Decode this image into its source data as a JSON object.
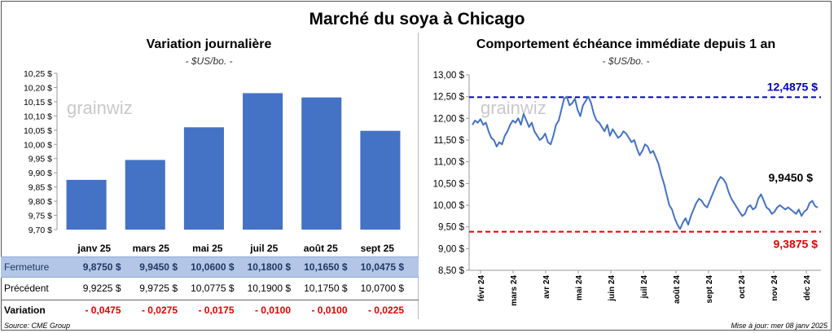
{
  "title": "Marché du soya à Chicago",
  "left": {
    "title": "Variation journalière",
    "unit": "- $US/bo. -"
  },
  "right": {
    "title": "Comportement échéance immédiate depuis 1 an",
    "unit": "- $US/bo. -",
    "label_high": "12,4875 $",
    "label_low": "9,3875 $",
    "label_last": "9,9450 $"
  },
  "watermark": "grainwiz",
  "table": {
    "headers": [
      "janv 25",
      "mars 25",
      "mai 25",
      "juil 25",
      "août 25",
      "sept 25"
    ],
    "fermeture_label": "Fermeture",
    "fermeture": [
      "9,8750  $",
      "9,9450  $",
      "10,0600  $",
      "10,1800  $",
      "10,1650  $",
      "10,0475  $"
    ],
    "precedent_label": "Précédent",
    "precedent": [
      "9,9225  $",
      "9,9725  $",
      "10,0775  $",
      "10,1900  $",
      "10,1750  $",
      "10,0700  $"
    ],
    "variation_label": "Variation",
    "variation": [
      "- 0,0475",
      "- 0,0275",
      "- 0,0175",
      "- 0,0100",
      "- 0,0100",
      "- 0,0225"
    ]
  },
  "footer": {
    "source": "Source: CME Group",
    "updated": "Mise à jour: mer 08 janv 2025"
  },
  "colors": {
    "bar": "#4472c4",
    "line": "#4472c4",
    "high": "#0000c0",
    "low": "#e00000"
  },
  "chart_data": [
    {
      "type": "bar",
      "categories": [
        "janv 25",
        "mars 25",
        "mai 25",
        "juil 25",
        "août 25",
        "sept 25"
      ],
      "values": [
        9.875,
        9.945,
        10.06,
        10.18,
        10.165,
        10.0475
      ],
      "ylim": [
        9.7,
        10.25
      ],
      "yticks": [
        "9,70 $",
        "9,75 $",
        "9,80 $",
        "9,85 $",
        "9,90 $",
        "9,95 $",
        "10,00 $",
        "10,05 $",
        "10,10 $",
        "10,15 $",
        "10,20 $",
        "10,25 $"
      ],
      "ytick_values": [
        9.7,
        9.75,
        9.8,
        9.85,
        9.9,
        9.95,
        10.0,
        10.05,
        10.1,
        10.15,
        10.2,
        10.25
      ]
    },
    {
      "type": "line",
      "xticks": [
        "févr 24",
        "mars 24",
        "avr 24",
        "mai 24",
        "juin 24",
        "juil 24",
        "août 24",
        "sept 24",
        "oct 24",
        "nov 24",
        "déc 24"
      ],
      "ylim": [
        8.5,
        13.0
      ],
      "yticks": [
        "8,50 $",
        "9,00 $",
        "9,50 $",
        "10,00 $",
        "10,50 $",
        "11,00 $",
        "11,50 $",
        "12,00 $",
        "12,50 $",
        "13,00 $"
      ],
      "ytick_values": [
        8.5,
        9.0,
        9.5,
        10.0,
        10.5,
        11.0,
        11.5,
        12.0,
        12.5,
        13.0
      ],
      "high": 12.4875,
      "low": 9.3875,
      "last": 9.945,
      "values": [
        11.85,
        11.95,
        11.9,
        11.98,
        11.85,
        11.9,
        11.7,
        11.55,
        11.5,
        11.35,
        11.45,
        11.4,
        11.6,
        11.7,
        11.85,
        11.95,
        11.9,
        12.0,
        11.85,
        12.1,
        11.95,
        11.8,
        11.9,
        11.7,
        11.6,
        11.5,
        11.55,
        11.65,
        11.45,
        11.4,
        11.6,
        11.85,
        11.95,
        12.2,
        12.45,
        12.5,
        12.3,
        12.35,
        12.45,
        12.2,
        12.05,
        12.3,
        12.4,
        12.5,
        12.35,
        12.1,
        11.95,
        11.9,
        11.8,
        11.7,
        11.85,
        11.6,
        11.75,
        11.65,
        11.55,
        11.6,
        11.7,
        11.65,
        11.55,
        11.45,
        11.5,
        11.3,
        11.15,
        11.25,
        11.4,
        11.35,
        11.2,
        11.25,
        11.1,
        10.95,
        10.7,
        10.5,
        10.25,
        10.0,
        9.9,
        9.7,
        9.55,
        9.45,
        9.6,
        9.7,
        9.55,
        9.75,
        9.9,
        10.05,
        10.15,
        10.1,
        10.0,
        9.95,
        10.1,
        10.25,
        10.4,
        10.55,
        10.65,
        10.6,
        10.5,
        10.3,
        10.15,
        10.05,
        9.95,
        9.85,
        9.75,
        9.8,
        9.95,
        10.0,
        9.9,
        9.95,
        10.15,
        10.25,
        10.1,
        9.95,
        9.9,
        9.8,
        9.85,
        9.95,
        10.0,
        9.95,
        9.9,
        9.95,
        9.9,
        9.85,
        9.8,
        9.9,
        9.75,
        9.85,
        9.9,
        10.05,
        10.1,
        9.98,
        9.945
      ]
    }
  ]
}
